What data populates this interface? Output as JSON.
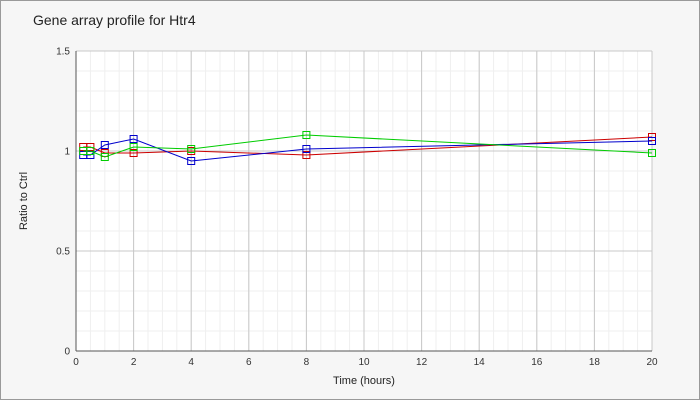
{
  "chart_data": {
    "type": "line",
    "title": "Gene array profile for Htr4",
    "xlabel": "Time (hours)",
    "ylabel": "Ratio to Ctrl",
    "xlim": [
      0,
      20
    ],
    "ylim": [
      0,
      1.5
    ],
    "x_ticks": [
      "0",
      "2",
      "4",
      "6",
      "8",
      "10",
      "12",
      "14",
      "16",
      "18",
      "20"
    ],
    "y_ticks": [
      "0",
      "0.5",
      "1",
      "1.5"
    ],
    "grid": true,
    "marker": "square",
    "series": [
      {
        "color": "#cc0000",
        "points": [
          [
            0.25,
            1.02
          ],
          [
            0.5,
            1.02
          ],
          [
            1,
            0.99
          ],
          [
            2,
            0.99
          ],
          [
            4,
            1.0
          ],
          [
            8,
            0.98
          ],
          [
            20,
            1.07
          ]
        ]
      },
      {
        "color": "#0000cc",
        "points": [
          [
            0.25,
            0.98
          ],
          [
            0.5,
            0.98
          ],
          [
            1,
            1.03
          ],
          [
            2,
            1.06
          ],
          [
            4,
            0.95
          ],
          [
            8,
            1.01
          ],
          [
            20,
            1.05
          ]
        ]
      },
      {
        "color": "#00cc00",
        "points": [
          [
            0.25,
            1.0
          ],
          [
            0.5,
            1.0
          ],
          [
            1,
            0.97
          ],
          [
            2,
            1.02
          ],
          [
            4,
            1.01
          ],
          [
            8,
            1.08
          ],
          [
            20,
            0.99
          ]
        ]
      }
    ]
  }
}
